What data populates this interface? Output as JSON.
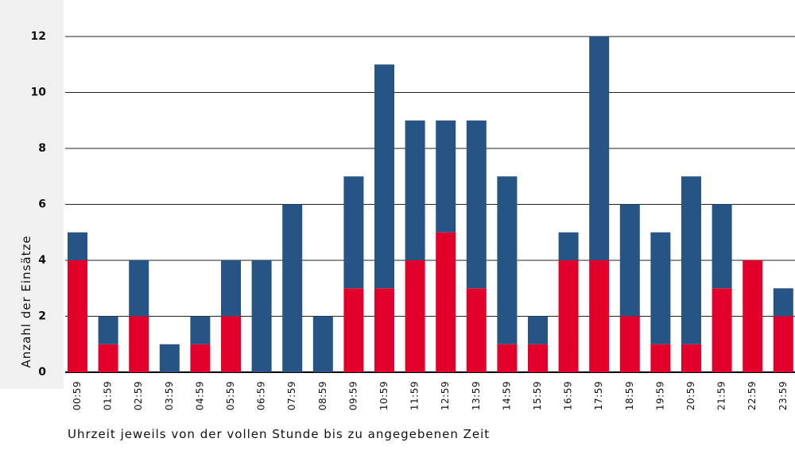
{
  "chart_data": {
    "type": "bar",
    "stacked": true,
    "y_label": "Anzahl der Einsätze",
    "x_label": "Uhrzeit jeweils von der vollen Stunde bis zu angegebenen Zeit",
    "categories": [
      "00:59",
      "01:59",
      "02:59",
      "03:59",
      "04:59",
      "05:59",
      "06:59",
      "07:59",
      "08:59",
      "09:59",
      "10:59",
      "11:59",
      "12:59",
      "13:59",
      "14:59",
      "15:59",
      "16:59",
      "17:59",
      "18:59",
      "19:59",
      "20:59",
      "21:59",
      "22:59",
      "23:59"
    ],
    "series": [
      {
        "color": "#e2002a",
        "values": [
          4,
          1,
          2,
          0,
          1,
          2,
          0,
          0,
          0,
          3,
          3,
          4,
          5,
          3,
          1,
          1,
          4,
          4,
          2,
          1,
          1,
          3,
          4,
          2
        ]
      },
      {
        "color": "#255485",
        "values": [
          1,
          1,
          2,
          1,
          1,
          2,
          4,
          6,
          2,
          4,
          8,
          5,
          4,
          6,
          6,
          1,
          1,
          8,
          4,
          4,
          6,
          3,
          0,
          1
        ]
      }
    ],
    "ylim": [
      0,
      12
    ],
    "yticks": [
      0,
      2,
      4,
      6,
      8,
      10,
      12
    ],
    "grid": true
  }
}
